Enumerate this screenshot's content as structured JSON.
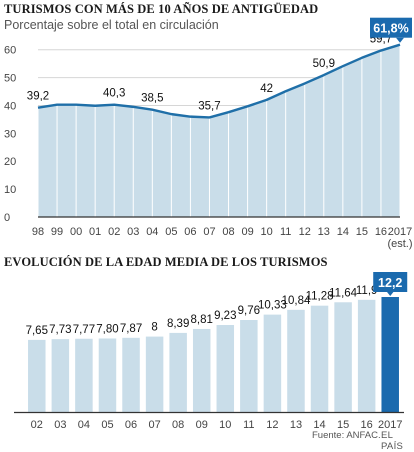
{
  "chart_data": [
    {
      "type": "area",
      "title": "TURISMOS CON MÁS DE 10 AÑOS DE ANTIGÜEDAD",
      "subtitle": "Porcentaje sobre el total en circulación",
      "categories": [
        "98",
        "99",
        "00",
        "01",
        "02",
        "03",
        "04",
        "05",
        "06",
        "07",
        "08",
        "09",
        "10",
        "11",
        "12",
        "13",
        "14",
        "15",
        "16",
        "2017"
      ],
      "last_category_note": "(est.)",
      "values": [
        39.2,
        40.3,
        40.3,
        39.9,
        40.3,
        39.5,
        38.5,
        36.9,
        36.0,
        35.7,
        37.6,
        39.7,
        42.0,
        45.1,
        47.9,
        50.9,
        54.1,
        57.1,
        59.7,
        61.8
      ],
      "labels": [
        {
          "index": 0,
          "text": "39,2"
        },
        {
          "index": 4,
          "text": "40,3"
        },
        {
          "index": 6,
          "text": "38,5"
        },
        {
          "index": 9,
          "text": "35,7"
        },
        {
          "index": 12,
          "text": "42"
        },
        {
          "index": 15,
          "text": "50,9"
        },
        {
          "index": 18,
          "text": "59,7"
        }
      ],
      "highlight_label": "61,8%",
      "ylim": [
        0,
        68
      ],
      "yticks": [
        0,
        10,
        20,
        30,
        40,
        50,
        60
      ],
      "grid": true
    },
    {
      "type": "bar",
      "title": "EVOLUCIÓN DE LA EDAD MEDIA DE LOS TURISMOS",
      "categories": [
        "02",
        "03",
        "04",
        "05",
        "06",
        "07",
        "08",
        "09",
        "10",
        "11",
        "12",
        "13",
        "14",
        "15",
        "16",
        "2017"
      ],
      "values": [
        7.65,
        7.73,
        7.77,
        7.8,
        7.87,
        8,
        8.39,
        8.81,
        9.23,
        9.76,
        10.33,
        10.84,
        11.28,
        11.64,
        11.9,
        12.2
      ],
      "value_labels": [
        "7,65",
        "7,73",
        "7,77",
        "7,80",
        "7,87",
        "8",
        "8,39",
        "8,81",
        "9,23",
        "9,76",
        "10,33",
        "10,84",
        "11,28",
        "11,64",
        "11,9",
        "12,2"
      ],
      "ylim": [
        0,
        12.2
      ]
    }
  ],
  "colors": {
    "area_fill": "#c9dde9",
    "line": "#1f6fa8",
    "bar": "#c9dde9",
    "highlight": "#1a6aae",
    "grid": "#d6d6d6",
    "axis": "#333333"
  },
  "footer": {
    "source": "Fuente: ANFAC.",
    "brand": "EL PAÍS"
  }
}
